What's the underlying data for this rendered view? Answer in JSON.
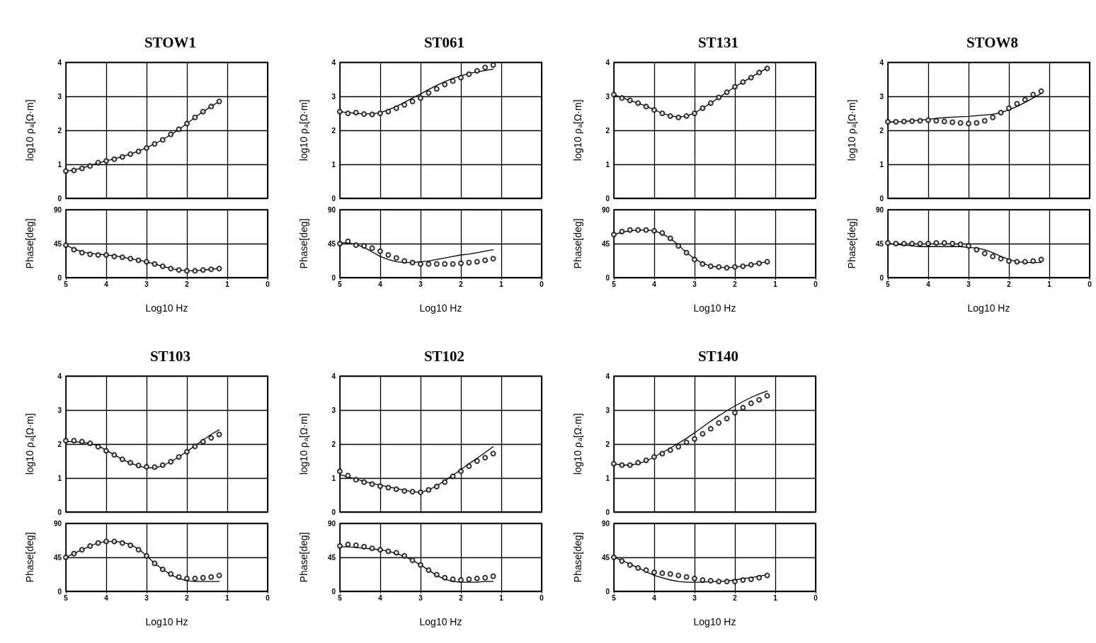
{
  "chart_data": [
    {
      "type": "line",
      "title": "STOW1",
      "ylabel": "log10 ρ$_{a}$[Ω·m]",
      "xlim": [
        5,
        0
      ],
      "xticks": [
        5,
        4,
        3,
        2,
        1,
        0
      ],
      "ylim": [
        0,
        4
      ],
      "yticks": [
        0,
        1,
        2,
        3,
        4
      ],
      "grid": true,
      "tick_labels": "y",
      "x": [
        5,
        4.8,
        4.6,
        4.4,
        4.2,
        4,
        3.8,
        3.6,
        3.4,
        3.2,
        3,
        2.8,
        2.6,
        2.4,
        2.2,
        2,
        1.8,
        1.6,
        1.4,
        1.2
      ],
      "series": [
        {
          "type": "scatter",
          "marker": "circle",
          "color": "#000000",
          "values": [
            0.8,
            0.82,
            0.88,
            0.95,
            1.05,
            1.1,
            1.15,
            1.22,
            1.3,
            1.38,
            1.48,
            1.6,
            1.72,
            1.88,
            2.03,
            2.2,
            2.38,
            2.55,
            2.7,
            2.85
          ]
        },
        {
          "type": "line",
          "marker": "none",
          "color": "#000000",
          "values": [
            0.8,
            0.83,
            0.89,
            0.96,
            1.04,
            1.1,
            1.16,
            1.23,
            1.3,
            1.39,
            1.49,
            1.6,
            1.73,
            1.87,
            2.02,
            2.2,
            2.38,
            2.55,
            2.7,
            2.85
          ]
        }
      ]
    },
    {
      "type": "line",
      "xlabel": "Log10 Hz",
      "ylabel": "Phase[deg]",
      "xlim": [
        5,
        0
      ],
      "xticks": [
        5,
        4,
        3,
        2,
        1,
        0
      ],
      "ylim": [
        0,
        90
      ],
      "yticks": [
        0,
        45,
        90
      ],
      "grid": true,
      "x": [
        5,
        4.8,
        4.6,
        4.4,
        4.2,
        4,
        3.8,
        3.6,
        3.4,
        3.2,
        3,
        2.8,
        2.6,
        2.4,
        2.2,
        2,
        1.8,
        1.6,
        1.4,
        1.2
      ],
      "series": [
        {
          "type": "scatter",
          "marker": "circle",
          "color": "#000000",
          "values": [
            43,
            37,
            33,
            31,
            30,
            30,
            28,
            27,
            25,
            23,
            21,
            18,
            15,
            12,
            10,
            9,
            9,
            10,
            11,
            12
          ]
        },
        {
          "type": "line",
          "marker": "none",
          "color": "#000000",
          "values": [
            43,
            38,
            34,
            32,
            31,
            30,
            29,
            27,
            25,
            23,
            21,
            18,
            15,
            12,
            10,
            9,
            9,
            10,
            11,
            12
          ]
        }
      ]
    },
    {
      "type": "line",
      "title": "ST061",
      "ylabel": "log10 ρ$_{a}$[Ω·m]",
      "xlim": [
        5,
        0
      ],
      "xticks": [
        5,
        4,
        3,
        2,
        1,
        0
      ],
      "ylim": [
        0,
        4
      ],
      "yticks": [
        0,
        1,
        2,
        3,
        4
      ],
      "grid": true,
      "tick_labels": "y",
      "x": [
        5,
        4.8,
        4.6,
        4.4,
        4.2,
        4,
        3.8,
        3.6,
        3.4,
        3.2,
        3,
        2.8,
        2.6,
        2.4,
        2.2,
        2,
        1.8,
        1.6,
        1.4,
        1.2
      ],
      "series": [
        {
          "type": "scatter",
          "marker": "circle",
          "color": "#000000",
          "values": [
            2.55,
            2.5,
            2.52,
            2.48,
            2.47,
            2.5,
            2.55,
            2.65,
            2.75,
            2.85,
            2.95,
            3.1,
            3.22,
            3.35,
            3.45,
            3.55,
            3.65,
            3.75,
            3.85,
            3.92
          ]
        },
        {
          "type": "line",
          "marker": "none",
          "color": "#000000",
          "values": [
            2.55,
            2.52,
            2.5,
            2.48,
            2.48,
            2.52,
            2.6,
            2.7,
            2.82,
            2.95,
            3.07,
            3.2,
            3.32,
            3.43,
            3.53,
            3.6,
            3.67,
            3.72,
            3.76,
            3.8
          ]
        }
      ]
    },
    {
      "type": "line",
      "xlabel": "Log10 Hz",
      "ylabel": "Phase[deg]",
      "xlim": [
        5,
        0
      ],
      "xticks": [
        5,
        4,
        3,
        2,
        1,
        0
      ],
      "ylim": [
        0,
        90
      ],
      "yticks": [
        0,
        45,
        90
      ],
      "grid": true,
      "x": [
        5,
        4.8,
        4.6,
        4.4,
        4.2,
        4,
        3.8,
        3.6,
        3.4,
        3.2,
        3,
        2.8,
        2.6,
        2.4,
        2.2,
        2,
        1.8,
        1.6,
        1.4,
        1.2
      ],
      "series": [
        {
          "type": "scatter",
          "marker": "circle",
          "color": "#000000",
          "values": [
            45,
            48,
            43,
            42,
            39,
            35,
            30,
            26,
            22,
            20,
            18,
            18,
            18,
            18,
            18,
            19,
            20,
            21,
            23,
            25
          ]
        },
        {
          "type": "line",
          "marker": "none",
          "color": "#000000",
          "values": [
            46,
            46,
            44,
            40,
            34,
            28,
            24,
            21,
            20,
            20,
            21,
            22,
            24,
            26,
            28,
            30,
            31,
            33,
            35,
            37
          ]
        }
      ]
    },
    {
      "type": "line",
      "title": "ST131",
      "ylabel": "log10 ρ$_{a}$[Ω·m]",
      "xlim": [
        5,
        0
      ],
      "xticks": [
        5,
        4,
        3,
        2,
        1,
        0
      ],
      "ylim": [
        0,
        4
      ],
      "yticks": [
        0,
        1,
        2,
        3,
        4
      ],
      "grid": true,
      "tick_labels": "y",
      "x": [
        5,
        4.8,
        4.6,
        4.4,
        4.2,
        4,
        3.8,
        3.6,
        3.4,
        3.2,
        3,
        2.8,
        2.6,
        2.4,
        2.2,
        2,
        1.8,
        1.6,
        1.4,
        1.2
      ],
      "series": [
        {
          "type": "scatter",
          "marker": "circle",
          "color": "#000000",
          "values": [
            3.05,
            2.95,
            2.88,
            2.8,
            2.7,
            2.6,
            2.5,
            2.42,
            2.38,
            2.42,
            2.5,
            2.65,
            2.8,
            2.97,
            3.12,
            3.28,
            3.42,
            3.55,
            3.7,
            3.82
          ]
        },
        {
          "type": "line",
          "marker": "none",
          "color": "#000000",
          "values": [
            3.05,
            2.96,
            2.88,
            2.8,
            2.71,
            2.6,
            2.5,
            2.43,
            2.39,
            2.42,
            2.51,
            2.65,
            2.8,
            2.96,
            3.12,
            3.28,
            3.42,
            3.56,
            3.7,
            3.83
          ]
        }
      ]
    },
    {
      "type": "line",
      "xlabel": "Log10 Hz",
      "ylabel": "Phase[deg]",
      "xlim": [
        5,
        0
      ],
      "xticks": [
        5,
        4,
        3,
        2,
        1,
        0
      ],
      "ylim": [
        0,
        90
      ],
      "yticks": [
        0,
        45,
        90
      ],
      "grid": true,
      "x": [
        5,
        4.8,
        4.6,
        4.4,
        4.2,
        4,
        3.8,
        3.6,
        3.4,
        3.2,
        3,
        2.8,
        2.6,
        2.4,
        2.2,
        2,
        1.8,
        1.6,
        1.4,
        1.2
      ],
      "series": [
        {
          "type": "scatter",
          "marker": "circle",
          "color": "#000000",
          "values": [
            57,
            61,
            63,
            63,
            63,
            62,
            59,
            52,
            42,
            33,
            24,
            18,
            15,
            14,
            13,
            14,
            15,
            17,
            19,
            21
          ]
        },
        {
          "type": "line",
          "marker": "none",
          "color": "#000000",
          "values": [
            57,
            60,
            62,
            63,
            63,
            62,
            58,
            52,
            43,
            33,
            25,
            19,
            15,
            14,
            13,
            14,
            15,
            17,
            19,
            21
          ]
        }
      ]
    },
    {
      "type": "line",
      "title": "STOW8",
      "ylabel": "log10 ρ$_{a}$[Ω·m]",
      "xlim": [
        5,
        0
      ],
      "xticks": [
        5,
        4,
        3,
        2,
        1,
        0
      ],
      "ylim": [
        0,
        4
      ],
      "yticks": [
        0,
        1,
        2,
        3,
        4
      ],
      "grid": true,
      "tick_labels": "y",
      "x": [
        5,
        4.8,
        4.6,
        4.4,
        4.2,
        4,
        3.8,
        3.6,
        3.4,
        3.2,
        3,
        2.8,
        2.6,
        2.4,
        2.2,
        2,
        1.8,
        1.6,
        1.4,
        1.2
      ],
      "series": [
        {
          "type": "scatter",
          "marker": "circle",
          "color": "#000000",
          "values": [
            2.25,
            2.25,
            2.26,
            2.27,
            2.28,
            2.3,
            2.28,
            2.26,
            2.24,
            2.22,
            2.2,
            2.22,
            2.28,
            2.38,
            2.52,
            2.65,
            2.78,
            2.9,
            3.05,
            3.15
          ]
        },
        {
          "type": "line",
          "marker": "none",
          "color": "#000000",
          "values": [
            2.24,
            2.25,
            2.26,
            2.28,
            2.3,
            2.32,
            2.35,
            2.37,
            2.39,
            2.4,
            2.41,
            2.43,
            2.45,
            2.47,
            2.52,
            2.6,
            2.7,
            2.82,
            2.95,
            3.08
          ]
        }
      ]
    },
    {
      "type": "line",
      "xlabel": "Log10 Hz",
      "ylabel": "Phase[deg]",
      "xlim": [
        5,
        0
      ],
      "xticks": [
        5,
        4,
        3,
        2,
        1,
        0
      ],
      "ylim": [
        0,
        90
      ],
      "yticks": [
        0,
        45,
        90
      ],
      "grid": true,
      "x": [
        5,
        4.8,
        4.6,
        4.4,
        4.2,
        4,
        3.8,
        3.6,
        3.4,
        3.2,
        3,
        2.8,
        2.6,
        2.4,
        2.2,
        2,
        1.8,
        1.6,
        1.4,
        1.2
      ],
      "series": [
        {
          "type": "scatter",
          "marker": "circle",
          "color": "#000000",
          "values": [
            46,
            45,
            45,
            45,
            45,
            45,
            46,
            46,
            45,
            44,
            42,
            37,
            32,
            28,
            25,
            22,
            21,
            21,
            22,
            24
          ]
        },
        {
          "type": "line",
          "marker": "none",
          "color": "#000000",
          "values": [
            45,
            44,
            43,
            42,
            41,
            41,
            41,
            41,
            41,
            41,
            40,
            39,
            37,
            33,
            28,
            24,
            21,
            20,
            20,
            20
          ]
        }
      ]
    },
    {
      "type": "line",
      "title": "ST103",
      "ylabel": "log10 ρ$_{a}$[Ω·m]",
      "xlim": [
        5,
        0
      ],
      "xticks": [
        5,
        4,
        3,
        2,
        1,
        0
      ],
      "ylim": [
        0,
        4
      ],
      "yticks": [
        0,
        1,
        2,
        3,
        4
      ],
      "grid": true,
      "tick_labels": "y",
      "x": [
        5,
        4.8,
        4.6,
        4.4,
        4.2,
        4,
        3.8,
        3.6,
        3.4,
        3.2,
        3,
        2.8,
        2.6,
        2.4,
        2.2,
        2,
        1.8,
        1.6,
        1.4,
        1.2
      ],
      "series": [
        {
          "type": "scatter",
          "marker": "circle",
          "color": "#000000",
          "values": [
            2.1,
            2.1,
            2.07,
            2.02,
            1.92,
            1.8,
            1.68,
            1.55,
            1.45,
            1.37,
            1.33,
            1.32,
            1.38,
            1.48,
            1.62,
            1.77,
            1.93,
            2.07,
            2.18,
            2.28
          ]
        },
        {
          "type": "line",
          "marker": "none",
          "color": "#000000",
          "values": [
            2.07,
            2.07,
            2.05,
            2.02,
            1.95,
            1.82,
            1.68,
            1.55,
            1.44,
            1.35,
            1.3,
            1.3,
            1.36,
            1.48,
            1.62,
            1.78,
            1.95,
            2.12,
            2.28,
            2.42
          ]
        }
      ]
    },
    {
      "type": "line",
      "xlabel": "Log10 Hz",
      "ylabel": "Phase[deg]",
      "xlim": [
        5,
        0
      ],
      "xticks": [
        5,
        4,
        3,
        2,
        1,
        0
      ],
      "ylim": [
        0,
        90
      ],
      "yticks": [
        0,
        45,
        90
      ],
      "grid": true,
      "x": [
        5,
        4.8,
        4.6,
        4.4,
        4.2,
        4,
        3.8,
        3.6,
        3.4,
        3.2,
        3,
        2.8,
        2.6,
        2.4,
        2.2,
        2,
        1.8,
        1.6,
        1.4,
        1.2
      ],
      "series": [
        {
          "type": "scatter",
          "marker": "circle",
          "color": "#000000",
          "values": [
            45,
            50,
            55,
            60,
            64,
            66,
            66,
            64,
            61,
            55,
            47,
            37,
            29,
            23,
            19,
            17,
            17,
            18,
            19,
            21
          ]
        },
        {
          "type": "line",
          "marker": "none",
          "color": "#000000",
          "values": [
            45,
            50,
            55,
            60,
            64,
            66,
            66,
            65,
            62,
            56,
            47,
            37,
            29,
            22,
            17,
            14,
            13,
            13,
            13,
            13
          ]
        }
      ]
    },
    {
      "type": "line",
      "title": "ST102",
      "ylabel": "log10 ρ$_{a}$[Ω·m]",
      "xlim": [
        5,
        0
      ],
      "xticks": [
        5,
        4,
        3,
        2,
        1,
        0
      ],
      "ylim": [
        0,
        4
      ],
      "yticks": [
        0,
        1,
        2,
        3,
        4
      ],
      "grid": true,
      "tick_labels": "y",
      "x": [
        5,
        4.8,
        4.6,
        4.4,
        4.2,
        4,
        3.8,
        3.6,
        3.4,
        3.2,
        3,
        2.8,
        2.6,
        2.4,
        2.2,
        2,
        1.8,
        1.6,
        1.4,
        1.2
      ],
      "series": [
        {
          "type": "scatter",
          "marker": "circle",
          "color": "#000000",
          "values": [
            1.2,
            1.07,
            0.95,
            0.88,
            0.82,
            0.76,
            0.72,
            0.67,
            0.62,
            0.6,
            0.58,
            0.65,
            0.75,
            0.88,
            1.05,
            1.2,
            1.35,
            1.5,
            1.6,
            1.72
          ]
        },
        {
          "type": "line",
          "marker": "none",
          "color": "#000000",
          "values": [
            1.1,
            1.03,
            0.97,
            0.9,
            0.84,
            0.79,
            0.74,
            0.69,
            0.64,
            0.6,
            0.57,
            0.65,
            0.77,
            0.92,
            1.08,
            1.25,
            1.42,
            1.58,
            1.75,
            1.92
          ]
        }
      ]
    },
    {
      "type": "line",
      "xlabel": "Log10 Hz",
      "ylabel": "Phase[deg]",
      "xlim": [
        5,
        0
      ],
      "xticks": [
        5,
        4,
        3,
        2,
        1,
        0
      ],
      "ylim": [
        0,
        90
      ],
      "yticks": [
        0,
        45,
        90
      ],
      "grid": true,
      "x": [
        5,
        4.8,
        4.6,
        4.4,
        4.2,
        4,
        3.8,
        3.6,
        3.4,
        3.2,
        3,
        2.8,
        2.6,
        2.4,
        2.2,
        2,
        1.8,
        1.6,
        1.4,
        1.2
      ],
      "series": [
        {
          "type": "scatter",
          "marker": "circle",
          "color": "#000000",
          "values": [
            60,
            62,
            61,
            59,
            57,
            55,
            53,
            51,
            47,
            41,
            35,
            28,
            22,
            18,
            16,
            15,
            16,
            17,
            18,
            20
          ]
        },
        {
          "type": "line",
          "marker": "none",
          "color": "#000000",
          "values": [
            59,
            59,
            58,
            57,
            56,
            55,
            53,
            50,
            46,
            41,
            35,
            28,
            21,
            16,
            13,
            12,
            12,
            12,
            13,
            13
          ]
        }
      ]
    },
    {
      "type": "line",
      "title": "ST140",
      "ylabel": "log10 ρ$_{a}$[Ω·m]",
      "xlim": [
        5,
        0
      ],
      "xticks": [
        5,
        4,
        3,
        2,
        1,
        0
      ],
      "ylim": [
        0,
        4
      ],
      "yticks": [
        0,
        1,
        2,
        3,
        4
      ],
      "grid": true,
      "tick_labels": "y",
      "x": [
        5,
        4.8,
        4.6,
        4.4,
        4.2,
        4,
        3.8,
        3.6,
        3.4,
        3.2,
        3,
        2.8,
        2.6,
        2.4,
        2.2,
        2,
        1.8,
        1.6,
        1.4,
        1.2
      ],
      "series": [
        {
          "type": "scatter",
          "marker": "circle",
          "color": "#000000",
          "values": [
            1.42,
            1.38,
            1.38,
            1.45,
            1.52,
            1.62,
            1.72,
            1.82,
            1.92,
            2.05,
            2.15,
            2.3,
            2.45,
            2.62,
            2.75,
            2.92,
            3.07,
            3.2,
            3.3,
            3.42
          ]
        },
        {
          "type": "line",
          "marker": "none",
          "color": "#000000",
          "values": [
            1.42,
            1.38,
            1.38,
            1.42,
            1.5,
            1.62,
            1.75,
            1.88,
            2.02,
            2.17,
            2.33,
            2.5,
            2.67,
            2.83,
            2.98,
            3.12,
            3.25,
            3.37,
            3.47,
            3.56
          ]
        }
      ]
    },
    {
      "type": "line",
      "xlabel": "Log10 Hz",
      "ylabel": "Phase[deg]",
      "xlim": [
        5,
        0
      ],
      "xticks": [
        5,
        4,
        3,
        2,
        1,
        0
      ],
      "ylim": [
        0,
        90
      ],
      "yticks": [
        0,
        45,
        90
      ],
      "grid": true,
      "x": [
        5,
        4.8,
        4.6,
        4.4,
        4.2,
        4,
        3.8,
        3.6,
        3.4,
        3.2,
        3,
        2.8,
        2.6,
        2.4,
        2.2,
        2,
        1.8,
        1.6,
        1.4,
        1.2
      ],
      "series": [
        {
          "type": "scatter",
          "marker": "circle",
          "color": "#000000",
          "values": [
            45,
            40,
            35,
            31,
            28,
            25,
            24,
            23,
            21,
            19,
            17,
            15,
            14,
            13,
            13,
            13,
            15,
            16,
            18,
            21
          ]
        },
        {
          "type": "line",
          "marker": "none",
          "color": "#000000",
          "values": [
            45,
            41,
            36,
            31,
            26,
            21,
            18,
            15,
            13,
            12,
            12,
            12,
            13,
            13,
            14,
            15,
            17,
            18,
            20,
            22
          ]
        }
      ]
    }
  ]
}
